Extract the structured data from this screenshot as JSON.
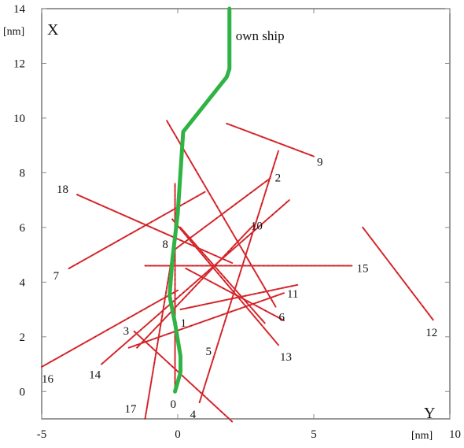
{
  "chart_data": {
    "type": "line",
    "title": "",
    "xlabel": "Y",
    "ylabel": "X",
    "x_unit": "[nm]",
    "y_unit": "[nm]",
    "xlim": [
      -5,
      10
    ],
    "ylim": [
      -1,
      14
    ],
    "x_ticks": [
      "-5",
      "0",
      "5",
      "10"
    ],
    "y_ticks": [
      "0",
      "2",
      "4",
      "6",
      "8",
      "10",
      "12",
      "14"
    ],
    "grid": false,
    "colors": {
      "own_ship": "#2fb344",
      "target_tracks": "#e0282e",
      "track_markers": "#1a1a1a",
      "axes": "#555555",
      "tick_marks": "#888888"
    },
    "own_ship": {
      "label": "own ship",
      "x": [
        -0.1,
        0.1,
        0.1,
        -0.1,
        -0.3,
        -0.2,
        0.0,
        0.2,
        1.0,
        1.8,
        1.9,
        1.9
      ],
      "y": [
        0.0,
        0.7,
        1.3,
        2.5,
        3.5,
        4.8,
        6.5,
        9.5,
        10.5,
        11.5,
        11.8,
        14.0
      ]
    },
    "series": [
      {
        "name": "0",
        "x": [
          -0.1,
          -0.1
        ],
        "y": [
          0.1,
          7.6
        ]
      },
      {
        "name": "1",
        "x": [
          0.1,
          4.4
        ],
        "y": [
          3.0,
          3.9
        ]
      },
      {
        "name": "2",
        "x": [
          -0.1,
          3.4
        ],
        "y": [
          5.2,
          7.8
        ]
      },
      {
        "name": "3",
        "x": [
          -1.6,
          2.0
        ],
        "y": [
          2.2,
          -1.1
        ]
      },
      {
        "name": "4",
        "x": [
          0.8,
          3.7
        ],
        "y": [
          -0.4,
          8.8
        ]
      },
      {
        "name": "5",
        "x": [
          0.1,
          3.2
        ],
        "y": [
          6.0,
          2.5
        ]
      },
      {
        "name": "6",
        "x": [
          -0.4,
          3.6
        ],
        "y": [
          9.9,
          3.1
        ]
      },
      {
        "name": "7",
        "x": [
          -4.0,
          1.0
        ],
        "y": [
          4.5,
          7.3
        ]
      },
      {
        "name": "8",
        "x": [
          0.3,
          3.9
        ],
        "y": [
          4.5,
          2.6
        ]
      },
      {
        "name": "9",
        "x": [
          1.8,
          5.0
        ],
        "y": [
          9.8,
          8.6
        ]
      },
      {
        "name": "10",
        "x": [
          -1.5,
          2.8
        ],
        "y": [
          1.6,
          6.1
        ]
      },
      {
        "name": "11",
        "x": [
          -1.8,
          3.9
        ],
        "y": [
          1.6,
          3.6
        ]
      },
      {
        "name": "12",
        "x": [
          6.8,
          9.4
        ],
        "y": [
          6.0,
          2.6
        ]
      },
      {
        "name": "13",
        "x": [
          -0.2,
          3.7
        ],
        "y": [
          6.3,
          1.7
        ]
      },
      {
        "name": "14",
        "x": [
          -2.8,
          4.1
        ],
        "y": [
          1.0,
          7.0
        ]
      },
      {
        "name": "15",
        "x": [
          -1.2,
          6.4
        ],
        "y": [
          4.6,
          4.6
        ]
      },
      {
        "name": "16",
        "x": [
          -5.0,
          0.0
        ],
        "y": [
          0.9,
          3.7
        ]
      },
      {
        "name": "17",
        "x": [
          -1.2,
          0.0
        ],
        "y": [
          -1.0,
          6.2
        ]
      },
      {
        "name": "18",
        "x": [
          -3.7,
          2.0
        ],
        "y": [
          7.2,
          4.7
        ]
      }
    ]
  }
}
